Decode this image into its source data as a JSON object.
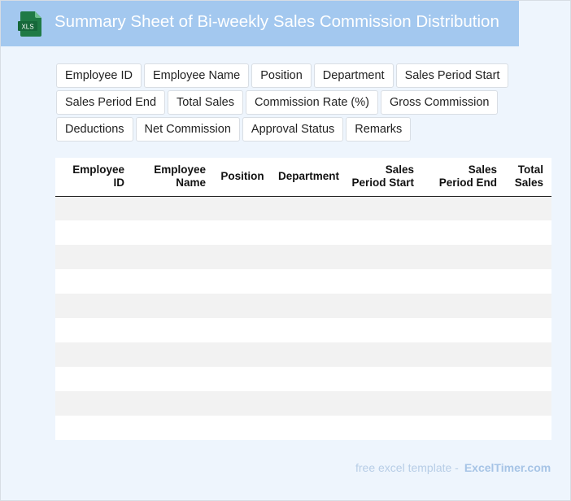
{
  "header": {
    "title": "Summary Sheet of Bi-weekly Sales Commission Distribution",
    "icon_label": "XLS",
    "icon_color": "#1f7a45",
    "background": "#a3c8ef"
  },
  "tags": [
    "Employee ID",
    "Employee Name",
    "Position",
    "Department",
    "Sales Period Start",
    "Sales Period End",
    "Total Sales",
    "Commission Rate (%)",
    "Gross Commission",
    "Deductions",
    "Net Commission",
    "Approval Status",
    "Remarks"
  ],
  "table": {
    "headers": [
      [
        "Employee",
        "ID"
      ],
      [
        "Employee",
        "Name"
      ],
      [
        "Position"
      ],
      [
        "Department"
      ],
      [
        "Sales",
        "Period Start"
      ],
      [
        "Sales",
        "Period End"
      ],
      [
        "Total",
        "Sales"
      ]
    ],
    "empty_rows": 10
  },
  "footer": {
    "prefix": "free excel template -",
    "brand": "ExcelTimer.com"
  }
}
